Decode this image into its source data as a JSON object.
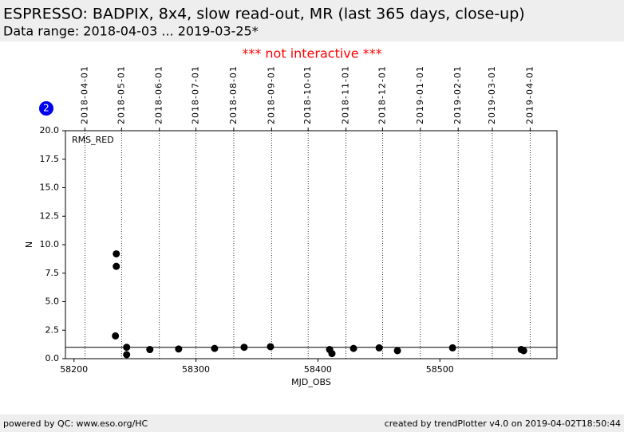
{
  "header": {
    "title": "ESPRESSO: BADPIX, 8x4, slow read-out, MR (last 365 days, close-up)",
    "subtitle": "Data range: 2018-04-03 ... 2019-03-25*"
  },
  "notice": "*** not interactive ***",
  "badge": "2",
  "chart_data": {
    "type": "scatter",
    "xlabel": "MJD_OBS",
    "ylabel": "N",
    "annotation": "RMS_RED",
    "xlim": [
      58193,
      58596
    ],
    "xticks": [
      58200,
      58300,
      58400,
      58500
    ],
    "ylim": [
      0,
      20
    ],
    "yticks": [
      {
        "value": 0,
        "label": "0.0"
      },
      {
        "value": 2.5,
        "label": "2.5"
      },
      {
        "value": 5,
        "label": "5.0"
      },
      {
        "value": 7.5,
        "label": "7.5"
      },
      {
        "value": 10,
        "label": "10.0"
      },
      {
        "value": 12.5,
        "label": "12.5"
      },
      {
        "value": 15,
        "label": "15.0"
      },
      {
        "value": 17.5,
        "label": "17.5"
      },
      {
        "value": 20,
        "label": "20.0"
      }
    ],
    "top_xticks": [
      {
        "value": 58209,
        "label": "2018-04-01"
      },
      {
        "value": 58239,
        "label": "2018-05-01"
      },
      {
        "value": 58270,
        "label": "2018-06-01"
      },
      {
        "value": 58300,
        "label": "2018-07-01"
      },
      {
        "value": 58331,
        "label": "2018-08-01"
      },
      {
        "value": 58362,
        "label": "2018-09-01"
      },
      {
        "value": 58392,
        "label": "2018-10-01"
      },
      {
        "value": 58423,
        "label": "2018-11-01"
      },
      {
        "value": 58453,
        "label": "2018-12-01"
      },
      {
        "value": 58484,
        "label": "2019-01-01"
      },
      {
        "value": 58515,
        "label": "2019-02-01"
      },
      {
        "value": 58543,
        "label": "2019-03-01"
      },
      {
        "value": 58574,
        "label": "2019-04-01"
      }
    ],
    "reference_line": 1,
    "color": "#000000",
    "x": [
      58234.7,
      58234.7,
      58234,
      58243.2,
      58243.2,
      58262.2,
      58285.8,
      58315.3,
      58339.5,
      58361.1,
      58409.6,
      58411.5,
      58429.2,
      58450.2,
      58465.2,
      58510.4,
      58566.7,
      58568.7
    ],
    "values": [
      9.2,
      8.1,
      2.0,
      1.0,
      0.35,
      0.8,
      0.85,
      0.9,
      1.0,
      1.05,
      0.8,
      0.45,
      0.9,
      0.95,
      0.7,
      0.95,
      0.8,
      0.7
    ]
  },
  "footer": {
    "left": "powered by QC: www.eso.org/HC",
    "right": "created by trendPlotter v4.0 on 2019-04-02T18:50:44"
  }
}
